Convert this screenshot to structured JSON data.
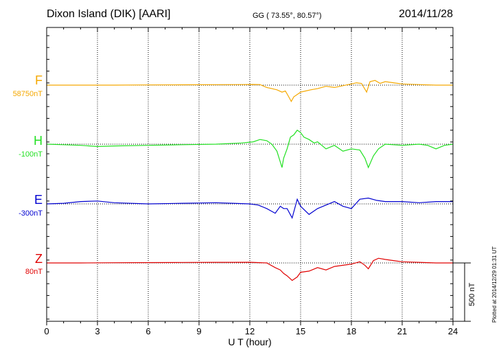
{
  "header": {
    "title": "Dixon Island (DIK)  [AARI]",
    "coords": "GG ( 73.55°,  80.57°)",
    "date": "2014/11/28"
  },
  "footer": {
    "plotted": "Plotted at 2014/12/29 01:31 UT"
  },
  "scale_bar": {
    "label": "500 nT",
    "value_nT": 500
  },
  "colors": {
    "F": "#f5a800",
    "H": "#20e020",
    "E": "#0000d0",
    "Z": "#e00000"
  },
  "chart_data": {
    "type": "line",
    "xlabel": "U T (hour)",
    "xlim": [
      0,
      24
    ],
    "xticks": [
      0,
      3,
      6,
      9,
      12,
      15,
      18,
      21,
      24
    ],
    "grid": true,
    "series": [
      {
        "name": "F",
        "baseline_label": "58750nT",
        "x": [
          0,
          2,
          4,
          6,
          8,
          10,
          11.5,
          12.2,
          12.6,
          13.0,
          13.3,
          13.6,
          13.9,
          14.1,
          14.3,
          14.45,
          14.6,
          14.8,
          15.0,
          15.3,
          15.6,
          16.0,
          16.5,
          17.0,
          17.5,
          18.0,
          18.3,
          18.6,
          18.9,
          19.1,
          19.4,
          19.7,
          20.0,
          20.5,
          21.0,
          22.0,
          23.0,
          24.0
        ],
        "y": [
          0,
          0,
          0,
          2,
          3,
          4,
          5,
          6,
          5,
          -20,
          -30,
          -40,
          -60,
          -50,
          -100,
          -140,
          -100,
          -80,
          -60,
          -50,
          -40,
          -30,
          -10,
          -20,
          -5,
          10,
          20,
          15,
          -60,
          30,
          40,
          15,
          30,
          20,
          10,
          5,
          0,
          0
        ]
      },
      {
        "name": "H",
        "baseline_label": "-100nT",
        "x": [
          0,
          1,
          2,
          3,
          4,
          6,
          8,
          10,
          11.5,
          12.2,
          12.6,
          13.0,
          13.3,
          13.6,
          13.9,
          14.0,
          14.2,
          14.4,
          14.6,
          14.8,
          15.0,
          15.2,
          15.5,
          15.8,
          16.0,
          16.5,
          17.0,
          17.5,
          18.0,
          18.5,
          18.8,
          19.0,
          19.3,
          19.6,
          20.0,
          21.0,
          22.0,
          22.5,
          23.0,
          23.5,
          24.0
        ],
        "y": [
          0,
          -5,
          -10,
          -20,
          -15,
          -10,
          -5,
          0,
          10,
          20,
          40,
          30,
          0,
          -60,
          -200,
          -120,
          -40,
          60,
          80,
          120,
          100,
          60,
          40,
          10,
          20,
          -40,
          -10,
          -60,
          -40,
          -50,
          -120,
          -200,
          -100,
          -40,
          0,
          -10,
          0,
          -10,
          -40,
          -10,
          0
        ]
      },
      {
        "name": "E",
        "baseline_label": "-300nT",
        "x": [
          0,
          1,
          2,
          3,
          4,
          6,
          8,
          10,
          11,
          12,
          12.5,
          13,
          13.5,
          13.8,
          14.0,
          14.2,
          14.5,
          14.8,
          15.0,
          15.5,
          16,
          16.5,
          17,
          17.5,
          18,
          18.5,
          19,
          19.5,
          20,
          21,
          22,
          23,
          24
        ],
        "y": [
          0,
          5,
          20,
          25,
          10,
          0,
          5,
          10,
          5,
          0,
          -10,
          -40,
          -80,
          -20,
          -40,
          -40,
          -120,
          40,
          -20,
          -90,
          -40,
          -10,
          20,
          -20,
          -40,
          40,
          50,
          30,
          20,
          20,
          10,
          20,
          20
        ]
      },
      {
        "name": "Z",
        "baseline_label": "80nT",
        "x": [
          0,
          2,
          4,
          6,
          8,
          10,
          11,
          12,
          13,
          13.5,
          13.8,
          14.0,
          14.2,
          14.5,
          14.8,
          15.0,
          15.5,
          16.0,
          16.5,
          17.0,
          17.5,
          18.0,
          18.5,
          18.8,
          19.0,
          19.3,
          19.6,
          20.0,
          20.5,
          21,
          22,
          23,
          24
        ],
        "y": [
          0,
          0,
          2,
          3,
          4,
          5,
          5,
          6,
          0,
          -40,
          -60,
          -90,
          -110,
          -150,
          -120,
          -80,
          -70,
          -40,
          -60,
          -30,
          -20,
          -10,
          10,
          -20,
          -50,
          20,
          40,
          30,
          20,
          10,
          5,
          0,
          0
        ]
      }
    ]
  }
}
